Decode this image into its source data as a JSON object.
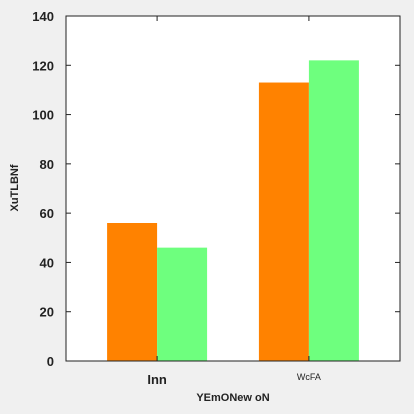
{
  "chart_data": {
    "type": "bar",
    "categories": [
      "Inn",
      "WcFA"
    ],
    "series": [
      {
        "values": [
          56,
          113
        ],
        "color": "#ff8200"
      },
      {
        "values": [
          46,
          122
        ],
        "color": "#6eff7e"
      }
    ],
    "xlabel": "YEmONew oN",
    "ylabel": "XuTLBNf",
    "ylim": [
      0,
      140
    ],
    "yticks": [
      0,
      20,
      40,
      60,
      80,
      100,
      120,
      140
    ],
    "grid": false,
    "legend": false
  }
}
